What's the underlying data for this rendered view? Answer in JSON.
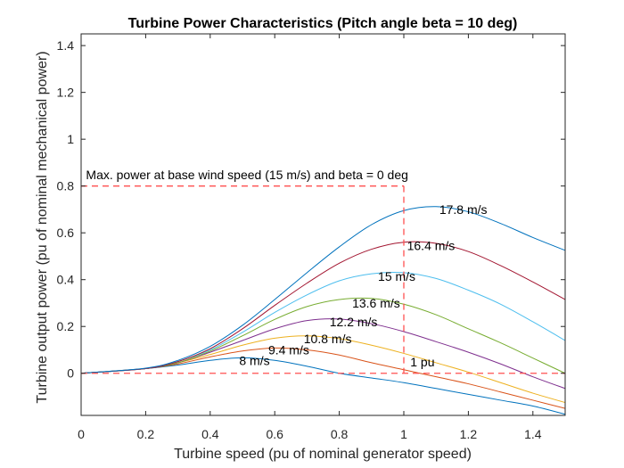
{
  "chart_data": {
    "type": "line",
    "title": "Turbine Power Characteristics (Pitch angle beta = 10 deg)",
    "xlabel": "Turbine speed (pu of nominal generator speed)",
    "ylabel": "Turbine output power (pu of nominal mechanical power)",
    "xlim": [
      0,
      1.5
    ],
    "ylim": [
      -0.18,
      1.45
    ],
    "xticks": [
      "0",
      "0.2",
      "0.4",
      "0.6",
      "0.8",
      "1",
      "1.2",
      "1.4"
    ],
    "yticks": [
      "0",
      "0.2",
      "0.4",
      "0.6",
      "0.8",
      "1",
      "1.2",
      "1.4"
    ],
    "grid": false,
    "legend": "none",
    "series": [
      {
        "name": "8 m/s",
        "color": "#0072BD",
        "x": [
          0,
          0.2,
          0.3,
          0.4,
          0.5,
          0.6,
          0.7,
          0.8,
          0.9,
          1.0,
          1.1,
          1.2,
          1.3,
          1.4,
          1.5
        ],
        "y": [
          0,
          0.02,
          0.035,
          0.055,
          0.066,
          0.055,
          0.03,
          0,
          -0.02,
          -0.04,
          -0.065,
          -0.09,
          -0.115,
          -0.14,
          -0.175
        ]
      },
      {
        "name": "9.4 m/s",
        "color": "#D95319",
        "x": [
          0,
          0.2,
          0.3,
          0.4,
          0.5,
          0.6,
          0.7,
          0.8,
          0.9,
          1.0,
          1.1,
          1.2,
          1.3,
          1.4,
          1.5
        ],
        "y": [
          0,
          0.02,
          0.04,
          0.07,
          0.095,
          0.108,
          0.1,
          0.078,
          0.045,
          0.015,
          -0.015,
          -0.045,
          -0.08,
          -0.115,
          -0.15
        ]
      },
      {
        "name": "10.8 m/s",
        "color": "#EDB120",
        "x": [
          0,
          0.2,
          0.3,
          0.4,
          0.5,
          0.6,
          0.7,
          0.8,
          0.9,
          1.0,
          1.1,
          1.2,
          1.3,
          1.4,
          1.5
        ],
        "y": [
          0,
          0.02,
          0.045,
          0.08,
          0.12,
          0.15,
          0.16,
          0.148,
          0.12,
          0.085,
          0.045,
          0.005,
          -0.04,
          -0.085,
          -0.125
        ]
      },
      {
        "name": "12.2 m/s",
        "color": "#7E2F8E",
        "x": [
          0,
          0.2,
          0.3,
          0.4,
          0.5,
          0.6,
          0.7,
          0.8,
          0.9,
          1.0,
          1.1,
          1.2,
          1.3,
          1.4,
          1.5
        ],
        "y": [
          0,
          0.02,
          0.045,
          0.09,
          0.14,
          0.19,
          0.225,
          0.232,
          0.212,
          0.178,
          0.135,
          0.09,
          0.04,
          -0.015,
          -0.065
        ]
      },
      {
        "name": "13.6 m/s",
        "color": "#77AC30",
        "x": [
          0,
          0.2,
          0.3,
          0.4,
          0.5,
          0.6,
          0.7,
          0.8,
          0.9,
          1.0,
          1.1,
          1.2,
          1.3,
          1.4,
          1.5
        ],
        "y": [
          0,
          0.02,
          0.045,
          0.095,
          0.16,
          0.23,
          0.285,
          0.315,
          0.32,
          0.295,
          0.25,
          0.19,
          0.13,
          0.065,
          0
        ]
      },
      {
        "name": "15 m/s",
        "color": "#4DBEEE",
        "x": [
          0,
          0.2,
          0.3,
          0.4,
          0.5,
          0.6,
          0.7,
          0.8,
          0.9,
          1.0,
          1.1,
          1.2,
          1.3,
          1.4,
          1.5
        ],
        "y": [
          0,
          0.02,
          0.05,
          0.1,
          0.175,
          0.26,
          0.335,
          0.395,
          0.425,
          0.43,
          0.405,
          0.355,
          0.295,
          0.22,
          0.14
        ]
      },
      {
        "name": "16.4 m/s",
        "color": "#A2142F",
        "x": [
          0,
          0.2,
          0.3,
          0.4,
          0.5,
          0.6,
          0.7,
          0.8,
          0.9,
          1.0,
          1.1,
          1.2,
          1.3,
          1.4,
          1.5
        ],
        "y": [
          0,
          0.02,
          0.05,
          0.105,
          0.19,
          0.29,
          0.385,
          0.47,
          0.53,
          0.56,
          0.555,
          0.52,
          0.46,
          0.39,
          0.315
        ]
      },
      {
        "name": "17.8 m/s",
        "color": "#0072BD",
        "x": [
          0,
          0.2,
          0.3,
          0.4,
          0.5,
          0.6,
          0.7,
          0.8,
          0.9,
          1.0,
          1.1,
          1.2,
          1.3,
          1.4,
          1.5
        ],
        "y": [
          0,
          0.022,
          0.055,
          0.115,
          0.205,
          0.315,
          0.43,
          0.54,
          0.635,
          0.695,
          0.712,
          0.69,
          0.64,
          0.58,
          0.525
        ]
      }
    ],
    "curve_labels": [
      {
        "text": "8 m/s",
        "x": 0.49,
        "y": 0.055
      },
      {
        "text": "9.4 m/s",
        "x": 0.58,
        "y": 0.1
      },
      {
        "text": "10.8 m/s",
        "x": 0.69,
        "y": 0.148
      },
      {
        "text": "12.2 m/s",
        "x": 0.77,
        "y": 0.22
      },
      {
        "text": "13.6 m/s",
        "x": 0.84,
        "y": 0.3
      },
      {
        "text": "15 m/s",
        "x": 0.92,
        "y": 0.415
      },
      {
        "text": "16.4 m/s",
        "x": 1.01,
        "y": 0.545
      },
      {
        "text": "17.8 m/s",
        "x": 1.11,
        "y": 0.7
      }
    ],
    "reference_lines": {
      "color": "#FF5050",
      "max_power_y": 0.8,
      "base_speed_x": 1.0,
      "zero_y": 0
    },
    "annotations": [
      {
        "text": "Max. power at base wind speed (15 m/s) and beta = 0 deg",
        "x": 0.015,
        "y": 0.83
      },
      {
        "text": "1 pu",
        "x": 1.02,
        "y": 0.03
      }
    ]
  }
}
